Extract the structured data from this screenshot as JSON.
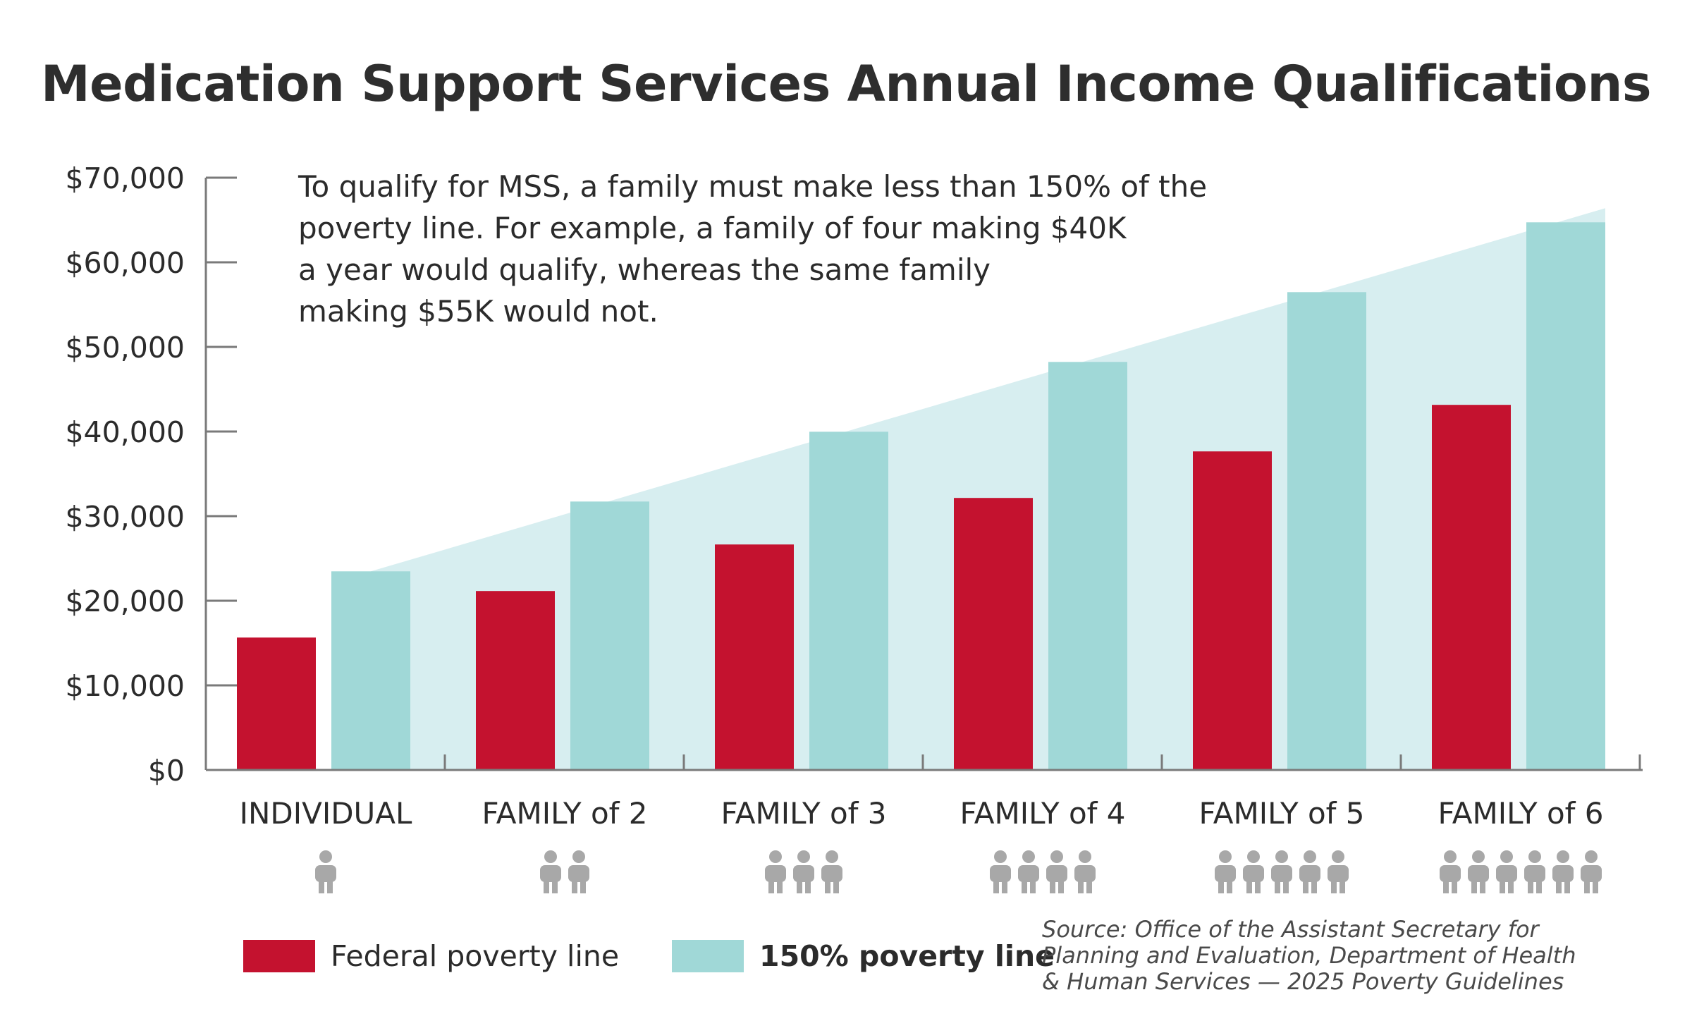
{
  "colors": {
    "federal": "#c4122f",
    "poverty150": "#a0d8d7",
    "area": "#d7eef0",
    "axis": "#7a7a7a",
    "person": "#a8a8a8"
  },
  "chart_data": {
    "type": "bar",
    "title": "Medication Support Services Annual Income Qualifications",
    "xlabel": "",
    "ylabel": "",
    "ylim": [
      0,
      70000
    ],
    "yticks": [
      0,
      10000,
      20000,
      30000,
      40000,
      50000,
      60000,
      70000
    ],
    "ytick_labels": [
      "$0",
      "$10,000",
      "$20,000",
      "$30,000",
      "$40,000",
      "$50,000",
      "$60,000",
      "$70,000"
    ],
    "categories": [
      "INDIVIDUAL",
      "FAMILY of 2",
      "FAMILY of 3",
      "FAMILY of 4",
      "FAMILY of 5",
      "FAMILY of 6"
    ],
    "household_sizes": [
      1,
      2,
      3,
      4,
      5,
      6
    ],
    "series": [
      {
        "name": "Federal poverty line",
        "values": [
          15650,
          21150,
          26650,
          32150,
          37650,
          43150
        ]
      },
      {
        "name": "150% poverty line",
        "values": [
          23475,
          31725,
          39975,
          48225,
          56475,
          64725
        ]
      }
    ],
    "annotation": [
      "To qualify for MSS, a family must make less than 150% of the",
      "poverty line. For example, a family of four making $40K",
      "a year would qualify, whereas the same family",
      "making $55K would not."
    ],
    "legend": [
      "Federal poverty line",
      "150% poverty line"
    ],
    "source": [
      "Source: Office of the Assistant Secretary for",
      "Planning and Evaluation, Department of Health",
      "& Human Services — 2025 Poverty Guidelines"
    ]
  }
}
